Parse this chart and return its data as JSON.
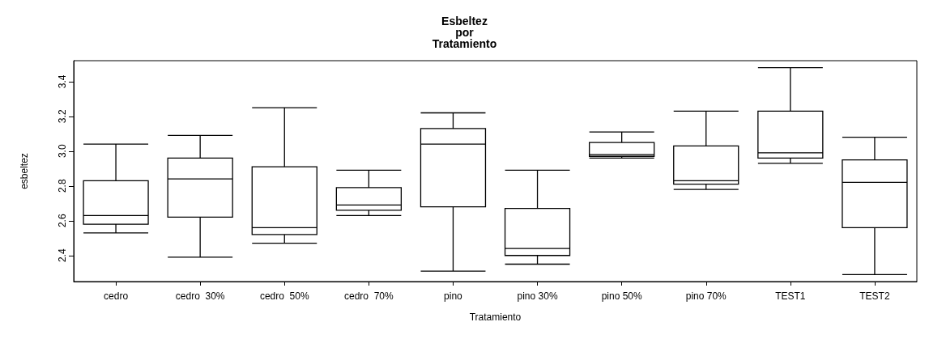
{
  "chart_data": {
    "type": "box",
    "title": "Esbeltez\npor\nTratamiento",
    "xlabel": "Tratamiento",
    "ylabel": "esbeltez",
    "categories": [
      "cedro",
      "cedro  30%",
      "cedro  50%",
      "cedro  70%",
      "pino",
      "pino 30%",
      "pino 50%",
      "pino 70%",
      "TEST1",
      "TEST2"
    ],
    "color": "#000000",
    "ylim": [
      2.25,
      3.52
    ],
    "yticks": [
      2.4,
      2.6,
      2.8,
      {
        "value": 3,
        "label": "3.0"
      },
      3.2,
      3.4
    ],
    "grid": false,
    "boxes": [
      {
        "low": 2.53,
        "q1": 2.58,
        "median": 2.63,
        "q3": 2.83,
        "high": 3.04
      },
      {
        "low": 2.39,
        "q1": 2.62,
        "median": 2.84,
        "q3": 2.96,
        "high": 3.09
      },
      {
        "low": 2.47,
        "q1": 2.52,
        "median": 2.56,
        "q3": 2.91,
        "high": 3.25
      },
      {
        "low": 2.63,
        "q1": 2.66,
        "median": 2.69,
        "q3": 2.79,
        "high": 2.89
      },
      {
        "low": 2.31,
        "q1": 2.68,
        "median": 3.04,
        "q3": 3.13,
        "high": 3.22
      },
      {
        "low": 2.35,
        "q1": 2.4,
        "median": 2.44,
        "q3": 2.67,
        "high": 2.89
      },
      {
        "low": 2.96,
        "q1": 2.97,
        "median": 2.98,
        "q3": 3.05,
        "high": 3.11
      },
      {
        "low": 2.78,
        "q1": 2.81,
        "median": 2.83,
        "q3": 3.03,
        "high": 3.23
      },
      {
        "low": 2.93,
        "q1": 2.96,
        "median": 2.99,
        "q3": 3.23,
        "high": 3.48
      },
      {
        "low": 2.29,
        "q1": 2.56,
        "median": 2.82,
        "q3": 2.95,
        "high": 3.08
      }
    ]
  }
}
